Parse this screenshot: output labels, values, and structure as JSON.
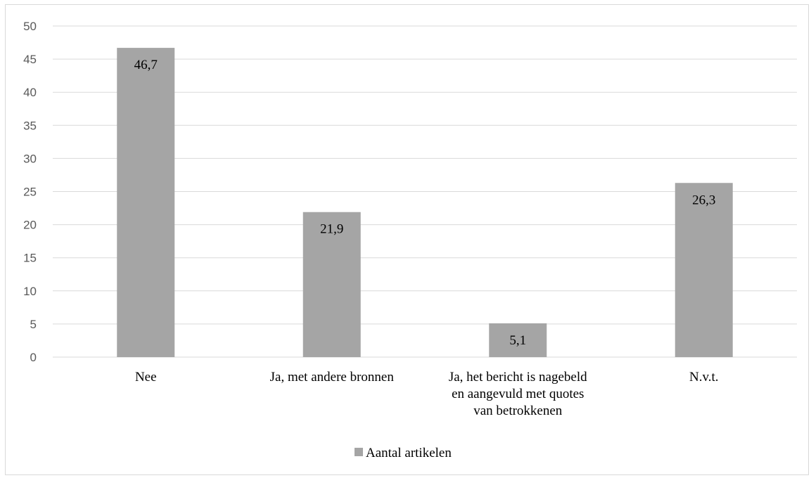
{
  "chart_data": {
    "type": "bar",
    "categories": [
      [
        "Nee"
      ],
      [
        "Ja, met andere bronnen"
      ],
      [
        "Ja, het bericht is nagebeld",
        "en aangevuld met quotes",
        "van betrokkenen"
      ],
      [
        "N.v.t."
      ]
    ],
    "series": [
      {
        "name": "Aantal artikelen",
        "values": [
          46.7,
          21.9,
          5.1,
          26.3
        ],
        "value_labels": [
          "46,7",
          "21,9",
          "5,1",
          "26,3"
        ]
      }
    ],
    "ylim": [
      0,
      50
    ],
    "yticks": [
      0,
      5,
      10,
      15,
      20,
      25,
      30,
      35,
      40,
      45,
      50
    ],
    "grid": true,
    "legend_position": "bottom",
    "colors": {
      "bar": "#a5a5a5",
      "grid": "#d9d9d9",
      "axis_text": "#595959"
    }
  }
}
